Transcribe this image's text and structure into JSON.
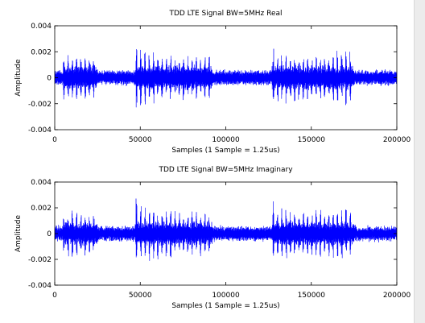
{
  "chart_data": [
    {
      "type": "line",
      "title": "TDD LTE Signal BW=5MHz Real",
      "xlabel": "Samples (1 Sample = 1.25us)",
      "ylabel": "Amplitude",
      "xlim": [
        0,
        200000
      ],
      "ylim": [
        -0.004,
        0.004
      ],
      "xticks": [
        0,
        50000,
        100000,
        150000,
        200000
      ],
      "xtick_labels": [
        "0",
        "50000",
        "100000",
        "150000",
        "200000"
      ],
      "yticks": [
        -0.004,
        -0.002,
        0,
        0.002,
        0.004
      ],
      "ytick_labels": [
        "-0.004",
        "-0.002",
        "0",
        "0.002",
        "0.004"
      ],
      "grid": false,
      "series": [
        {
          "color": "#0000ff",
          "baseline_envelope": 0.0006,
          "burst_ranges": [
            [
              5000,
              25000
            ],
            [
              47000,
              92000
            ],
            [
              127000,
              175000
            ]
          ],
          "peak_envelope": [
            [
              0,
              0.0005
            ],
            [
              5000,
              0.0018
            ],
            [
              10000,
              0.0022
            ],
            [
              15000,
              0.002
            ],
            [
              20000,
              0.0017
            ],
            [
              25000,
              0.0015
            ],
            [
              30000,
              0.0006
            ],
            [
              40000,
              0.0006
            ],
            [
              47000,
              0.003
            ],
            [
              50000,
              0.0024
            ],
            [
              60000,
              0.0021
            ],
            [
              70000,
              0.0019
            ],
            [
              80000,
              0.0019
            ],
            [
              92000,
              0.0017
            ],
            [
              100000,
              0.0006
            ],
            [
              120000,
              0.0006
            ],
            [
              127000,
              0.003
            ],
            [
              130000,
              0.0022
            ],
            [
              140000,
              0.002
            ],
            [
              150000,
              0.0018
            ],
            [
              160000,
              0.002
            ],
            [
              170000,
              0.0025
            ],
            [
              175000,
              0.002
            ],
            [
              180000,
              0.0007
            ],
            [
              200000,
              0.0007
            ]
          ]
        }
      ]
    },
    {
      "type": "line",
      "title": "TDD LTE Signal BW=5MHz Imaginary",
      "xlabel": "Samples (1 Sample = 1.25us)",
      "ylabel": "Amplitude",
      "xlim": [
        0,
        200000
      ],
      "ylim": [
        -0.004,
        0.004
      ],
      "xticks": [
        0,
        50000,
        100000,
        150000,
        200000
      ],
      "xtick_labels": [
        "0",
        "50000",
        "100000",
        "150000",
        "200000"
      ],
      "yticks": [
        -0.004,
        -0.002,
        0,
        0.002,
        0.004
      ],
      "ytick_labels": [
        "-0.004",
        "-0.002",
        "0",
        "0.002",
        "0.004"
      ],
      "grid": false,
      "series": [
        {
          "color": "#0000ff",
          "baseline_envelope": 0.0006,
          "burst_ranges": [
            [
              5000,
              25000
            ],
            [
              47000,
              92000
            ],
            [
              127000,
              175000
            ]
          ],
          "peak_envelope": [
            [
              0,
              0.0005
            ],
            [
              5000,
              0.0017
            ],
            [
              10000,
              0.0021
            ],
            [
              15000,
              0.002
            ],
            [
              20000,
              0.0017
            ],
            [
              25000,
              0.0015
            ],
            [
              30000,
              0.0006
            ],
            [
              40000,
              0.0006
            ],
            [
              47000,
              0.0031
            ],
            [
              50000,
              0.0024
            ],
            [
              60000,
              0.0021
            ],
            [
              70000,
              0.0019
            ],
            [
              80000,
              0.0019
            ],
            [
              92000,
              0.0017
            ],
            [
              100000,
              0.0006
            ],
            [
              120000,
              0.0006
            ],
            [
              127000,
              0.003
            ],
            [
              130000,
              0.0022
            ],
            [
              140000,
              0.002
            ],
            [
              150000,
              0.0019
            ],
            [
              160000,
              0.002
            ],
            [
              170000,
              0.0023
            ],
            [
              175000,
              0.002
            ],
            [
              180000,
              0.0007
            ],
            [
              200000,
              0.0007
            ]
          ]
        }
      ]
    }
  ]
}
